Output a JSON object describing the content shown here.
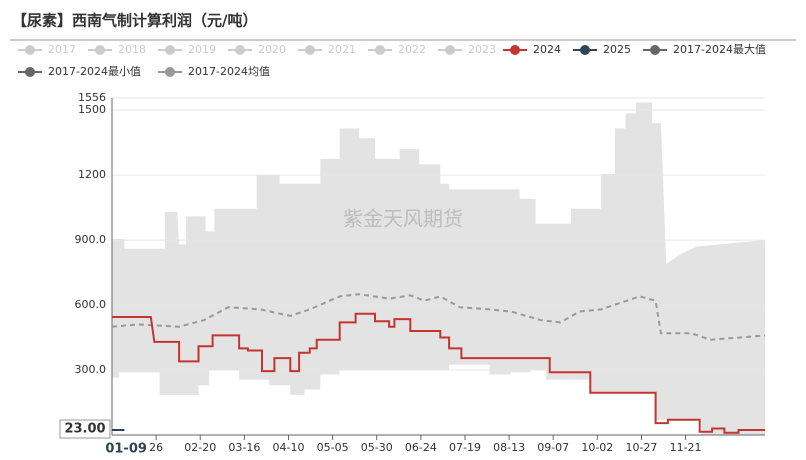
{
  "chart_data": {
    "type": "line",
    "title": "【尿素】西南气制计算利润（元/吨）",
    "watermark": "紫金天风期货",
    "xlim": [
      0,
      370
    ],
    "xticks": [
      {
        "value": 25,
        "label": "26"
      },
      {
        "value": 50,
        "label": "02-20"
      },
      {
        "value": 75,
        "label": "03-16"
      },
      {
        "value": 100,
        "label": "04-10"
      },
      {
        "value": 125,
        "label": "05-05"
      },
      {
        "value": 150,
        "label": "05-30"
      },
      {
        "value": 175,
        "label": "06-24"
      },
      {
        "value": 200,
        "label": "07-19"
      },
      {
        "value": 225,
        "label": "08-13"
      },
      {
        "value": 250,
        "label": "09-07"
      },
      {
        "value": 275,
        "label": "10-02"
      },
      {
        "value": 300,
        "label": "10-27"
      },
      {
        "value": 325,
        "label": "11-21"
      }
    ],
    "ylim": [
      0,
      1556
    ],
    "yticks": [
      {
        "value": 300,
        "label": "300.0"
      },
      {
        "value": 600,
        "label": "600.0"
      },
      {
        "value": 900,
        "label": "900.0"
      },
      1200,
      1500,
      1556
    ],
    "grid": true,
    "pointer": {
      "x": 8,
      "x_label": "01-09",
      "y": 23,
      "y_label": "23.00"
    },
    "series": [
      {
        "name": "2017",
        "color": "#cccccc",
        "hidden": true,
        "x": [],
        "values": []
      },
      {
        "name": "2018",
        "color": "#cccccc",
        "hidden": true,
        "x": [],
        "values": []
      },
      {
        "name": "2019",
        "color": "#cccccc",
        "hidden": true,
        "x": [],
        "values": []
      },
      {
        "name": "2020",
        "color": "#cccccc",
        "hidden": true,
        "x": [],
        "values": []
      },
      {
        "name": "2021",
        "color": "#cccccc",
        "hidden": true,
        "x": [],
        "values": []
      },
      {
        "name": "2022",
        "color": "#cccccc",
        "hidden": true,
        "x": [],
        "values": []
      },
      {
        "name": "2023",
        "color": "#cccccc",
        "hidden": true,
        "x": [],
        "values": []
      },
      {
        "name": "2024",
        "color": "#c23531",
        "style": "line",
        "x": [
          0,
          22,
          24,
          38,
          38,
          49,
          49,
          57,
          57,
          72,
          72,
          77,
          77,
          85,
          85,
          92,
          92,
          101,
          101,
          106,
          106,
          112,
          112,
          116,
          116,
          129,
          129,
          138,
          138,
          149,
          149,
          157,
          157,
          160,
          160,
          169,
          169,
          186,
          186,
          191,
          191,
          198,
          198,
          248,
          248,
          271,
          271,
          308,
          308,
          315,
          315,
          333,
          333,
          340,
          340,
          347,
          347,
          355,
          355,
          370
        ],
        "values": [
          545,
          545,
          430,
          430,
          340,
          340,
          410,
          410,
          460,
          460,
          400,
          400,
          390,
          390,
          295,
          295,
          355,
          355,
          295,
          295,
          380,
          380,
          400,
          400,
          440,
          440,
          520,
          520,
          560,
          560,
          525,
          525,
          500,
          500,
          535,
          535,
          480,
          480,
          450,
          450,
          400,
          400,
          355,
          355,
          290,
          290,
          195,
          195,
          55,
          55,
          70,
          70,
          15,
          15,
          30,
          30,
          10,
          10,
          23,
          23
        ]
      },
      {
        "name": "2025",
        "color": "#2f4554",
        "style": "line",
        "x": [
          0,
          7
        ],
        "values": [
          23,
          23
        ]
      },
      {
        "name": "2017-2024最大值",
        "color": "#666666",
        "style": "max",
        "x": [
          0,
          7,
          7,
          30,
          30,
          37,
          38,
          42,
          42,
          53,
          53,
          58,
          58,
          82,
          82,
          95,
          95,
          118,
          118,
          129,
          129,
          140,
          140,
          149,
          149,
          163,
          163,
          174,
          174,
          186,
          186,
          191,
          191,
          231,
          231,
          240,
          240,
          260,
          260,
          277,
          277,
          285,
          285,
          291,
          291,
          297,
          297,
          306,
          306,
          311,
          314,
          322,
          322,
          331,
          331,
          370
        ],
        "values": [
          905,
          905,
          860,
          860,
          1030,
          1030,
          880,
          880,
          1010,
          1010,
          940,
          940,
          1045,
          1045,
          1200,
          1200,
          1160,
          1160,
          1275,
          1275,
          1415,
          1415,
          1370,
          1370,
          1275,
          1275,
          1320,
          1320,
          1250,
          1250,
          1160,
          1160,
          1135,
          1135,
          1090,
          1090,
          975,
          975,
          1045,
          1045,
          1205,
          1205,
          1415,
          1415,
          1485,
          1485,
          1535,
          1535,
          1440,
          1440,
          790,
          835,
          835,
          870,
          870,
          900
        ]
      },
      {
        "name": "2017-2024最小值",
        "color": "#666666",
        "style": "min",
        "x": [
          0,
          4,
          4,
          27,
          27,
          49,
          49,
          55,
          55,
          72,
          72,
          89,
          89,
          101,
          101,
          109,
          109,
          118,
          118,
          129,
          129,
          191,
          191,
          214,
          214,
          226,
          226,
          237,
          237,
          246,
          246,
          271,
          271,
          308,
          308,
          334,
          334,
          370
        ],
        "values": [
          265,
          265,
          290,
          290,
          185,
          185,
          230,
          230,
          300,
          300,
          255,
          255,
          230,
          230,
          185,
          185,
          210,
          210,
          280,
          280,
          300,
          300,
          325,
          325,
          280,
          280,
          290,
          290,
          300,
          300,
          255,
          255,
          200,
          200,
          70,
          70,
          0,
          0
        ]
      },
      {
        "name": "2017-2024均值",
        "color": "#999999",
        "style": "dash",
        "x": [
          0,
          15,
          38,
          52,
          66,
          84,
          101,
          112,
          129,
          140,
          157,
          169,
          177,
          186,
          197,
          214,
          226,
          243,
          254,
          265,
          277,
          288,
          299,
          308,
          311,
          328,
          339,
          356,
          370
        ],
        "values": [
          500,
          510,
          500,
          530,
          590,
          580,
          550,
          580,
          640,
          650,
          630,
          645,
          620,
          640,
          590,
          580,
          570,
          530,
          520,
          570,
          580,
          610,
          640,
          620,
          470,
          470,
          440,
          450,
          460
        ]
      }
    ]
  }
}
